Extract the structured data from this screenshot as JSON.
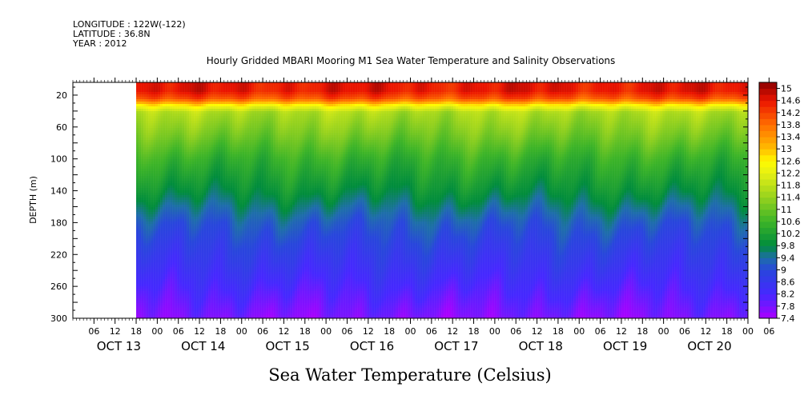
{
  "header": {
    "longitude": "LONGITUDE : 122W(-122)",
    "latitude": "LATITUDE : 36.8N",
    "year": "YEAR : 2012"
  },
  "chart_data": {
    "type": "heatmap",
    "title": "Hourly Gridded MBARI Mooring M1 Sea Water Temperature and Salinity Observations",
    "xlabel": "",
    "ylabel": "DEPTH (m)",
    "units_label": "Sea Water Temperature (Celsius)",
    "x_range_hours": [
      0,
      192
    ],
    "data_start_hour": 18,
    "x_hour_ticks": [
      "06",
      "12",
      "18",
      "00",
      "06",
      "12",
      "18",
      "00",
      "06",
      "12",
      "18",
      "00",
      "06",
      "12",
      "18",
      "00",
      "06",
      "12",
      "18",
      "00",
      "06",
      "12",
      "18",
      "00",
      "06",
      "12",
      "18",
      "00",
      "06",
      "12",
      "18",
      "00",
      "06"
    ],
    "x_day_labels": [
      "OCT 13",
      "OCT 14",
      "OCT 15",
      "OCT 16",
      "OCT 17",
      "OCT 18",
      "OCT 19",
      "OCT 20"
    ],
    "y_range": [
      4,
      300
    ],
    "y_reversed": true,
    "y_ticks": [
      20,
      60,
      100,
      140,
      180,
      220,
      260,
      300
    ],
    "colorbar": {
      "levels": [
        15,
        14.6,
        14.2,
        13.8,
        13.4,
        13,
        12.6,
        12.2,
        11.8,
        11.4,
        11,
        10.6,
        10.2,
        9.8,
        9.4,
        9,
        8.6,
        8.2,
        7.8,
        7.4
      ],
      "min": 7.4,
      "max": 15.2
    },
    "depth_profile": [
      {
        "depth": 4,
        "temp": 14.6
      },
      {
        "depth": 15,
        "temp": 14.6
      },
      {
        "depth": 25,
        "temp": 14.0
      },
      {
        "depth": 34,
        "temp": 12.4
      },
      {
        "depth": 42,
        "temp": 11.6
      },
      {
        "depth": 70,
        "temp": 11.1
      },
      {
        "depth": 100,
        "temp": 10.5
      },
      {
        "depth": 140,
        "temp": 9.9
      },
      {
        "depth": 180,
        "temp": 9.2
      },
      {
        "depth": 220,
        "temp": 8.7
      },
      {
        "depth": 260,
        "temp": 8.2
      },
      {
        "depth": 300,
        "temp": 7.7
      }
    ]
  }
}
